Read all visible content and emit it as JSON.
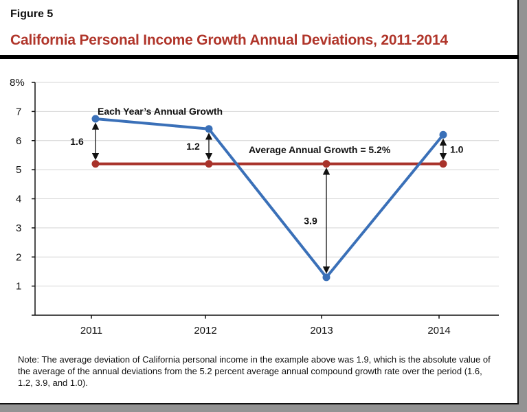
{
  "figure_label": "Figure 5",
  "title": "California Personal Income Growth Annual Deviations, 2011-2014",
  "note": "Note: The average deviation of California personal income in the example above was 1.9, which is the absolute value of the average of the annual deviations from the 5.2 percent average annual compound growth rate over the period (1.6, 1.2, 3.9, and 1.0).",
  "chart_data": {
    "type": "line",
    "categories": [
      "2011",
      "2012",
      "2013",
      "2014"
    ],
    "series": [
      {
        "name": "Each Year's Annual Growth",
        "values": [
          6.75,
          6.4,
          1.3,
          6.2
        ],
        "color": "#3a70b8"
      },
      {
        "name": "Average Annual Growth = 5.2%",
        "values": [
          5.2,
          5.2,
          5.2,
          5.2
        ],
        "color": "#a8322a"
      }
    ],
    "deviation_labels": [
      "1.6",
      "1.2",
      "3.9",
      "1.0"
    ],
    "y_ticks": [
      "",
      "1",
      "2",
      "3",
      "4",
      "5",
      "6",
      "7",
      "8%"
    ],
    "ylim": [
      0,
      8
    ],
    "grid": true,
    "series_labels": {
      "annual": "Each Year’s Annual Growth",
      "average": "Average Annual Growth = 5.2%"
    }
  }
}
